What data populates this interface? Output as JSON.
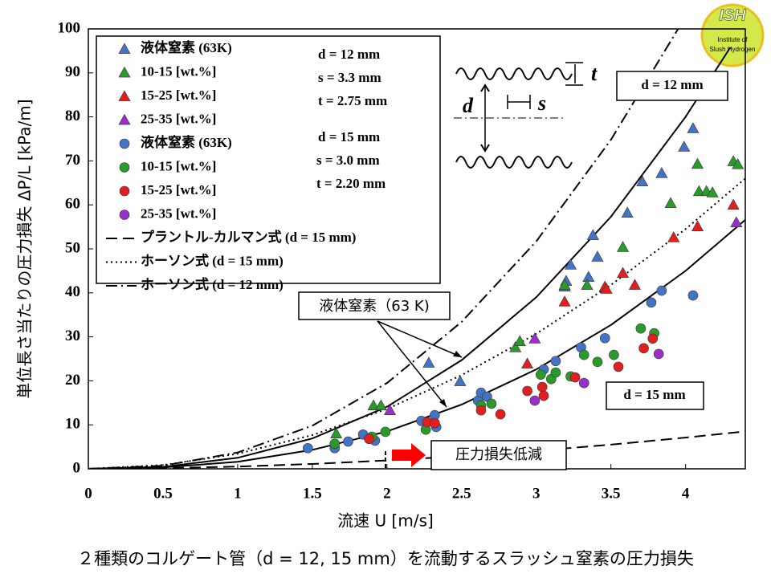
{
  "chart_data": {
    "type": "scatter",
    "title": "２種類のコルゲート管（d = 12, 15 mm）を流動するスラッシュ窒素の圧力損失",
    "x_label": "流速 U [m/s]",
    "y_label": "単位長さ当たりの圧力損失 ΔP/L [kPa/m]",
    "xlim": [
      0,
      4.4
    ],
    "ylim": [
      0,
      100
    ],
    "xticks": [
      0,
      0.5,
      1,
      1.5,
      2,
      2.5,
      3,
      3.5,
      4
    ],
    "yticks": [
      0,
      10,
      20,
      30,
      40,
      50,
      60,
      70,
      80,
      90,
      100
    ],
    "grid": false,
    "legend": "upper left",
    "series": [
      {
        "name": "液体窒素 (63K)",
        "color": "#4472c4",
        "marker": "triangle",
        "x": [
          2.28,
          2.49,
          3.19,
          3.23,
          3.2,
          3.35,
          3.38,
          3.41,
          3.61,
          3.71,
          3.84,
          3.99,
          4.05
        ],
        "values": [
          24.1,
          19.9,
          41.4,
          46.4,
          42.7,
          43.6,
          53.1,
          48.2,
          58.2,
          65.3,
          67.2,
          73.2,
          77.4
        ]
      },
      {
        "name": "10-15 [wt.%]",
        "color": "#2a9a2a",
        "marker": "triangle",
        "x": [
          1.66,
          1.91,
          1.96,
          2.86,
          2.89,
          3.19,
          3.34,
          3.58,
          3.9,
          4.08,
          4.09,
          4.14,
          4.18,
          4.32,
          4.35
        ],
        "values": [
          8.0,
          14.4,
          14.4,
          27.6,
          29.0,
          41.8,
          41.8,
          50.4,
          60.4,
          69.3,
          63.1,
          63.1,
          62.8,
          69.9,
          69.2
        ]
      },
      {
        "name": "15-25 [wt.%]",
        "color": "#e02020",
        "marker": "triangle",
        "x": [
          2.94,
          3.19,
          3.46,
          3.47,
          3.58,
          3.66,
          3.92,
          4.08,
          4.32
        ],
        "values": [
          23.9,
          38.0,
          41.4,
          40.9,
          44.5,
          41.8,
          52.6,
          55.1,
          60.0
        ]
      },
      {
        "name": "25-35 [wt.%]",
        "color": "#9b30c8",
        "marker": "triangle",
        "x": [
          2.02,
          2.99,
          4.34
        ],
        "values": [
          13.3,
          29.6,
          56.0
        ]
      },
      {
        "name": "液体窒素 (63K)",
        "color": "#4472c4",
        "marker": "circle",
        "x": [
          1.47,
          1.65,
          1.74,
          1.84,
          1.92,
          2.23,
          2.32,
          2.33,
          2.61,
          2.63,
          2.67,
          3.05,
          3.13,
          3.3,
          3.46,
          3.77,
          3.84,
          4.05
        ],
        "values": [
          4.7,
          4.7,
          6.2,
          7.8,
          6.4,
          10.9,
          12.2,
          9.5,
          15.5,
          17.3,
          16.4,
          22.6,
          24.5,
          27.6,
          29.7,
          37.8,
          40.5,
          39.4
        ]
      },
      {
        "name": "10-15 [wt.%]",
        "color": "#2a9a2a",
        "marker": "circle",
        "x": [
          1.65,
          1.9,
          1.99,
          2.26,
          2.63,
          2.7,
          3.03,
          3.1,
          3.13,
          3.23,
          3.32,
          3.41,
          3.52,
          3.7,
          3.79
        ],
        "values": [
          5.7,
          7.3,
          8.4,
          8.9,
          14.4,
          14.8,
          21.4,
          20.4,
          21.9,
          21.0,
          25.9,
          24.3,
          25.9,
          31.9,
          30.8
        ]
      },
      {
        "name": "15-25 [wt.%]",
        "color": "#e02020",
        "marker": "circle",
        "x": [
          1.88,
          2.27,
          2.32,
          2.63,
          2.76,
          2.94,
          3.04,
          3.05,
          3.26,
          3.55,
          3.72,
          3.78
        ],
        "values": [
          6.8,
          10.6,
          10.4,
          13.3,
          12.4,
          17.7,
          18.6,
          16.6,
          20.8,
          23.2,
          27.4,
          29.6
        ]
      },
      {
        "name": "25-35 [wt.%]",
        "color": "#9b30c8",
        "marker": "circle",
        "x": [
          2.99,
          3.32,
          3.82
        ],
        "values": [
          15.5,
          19.5,
          26.1
        ]
      },
      {
        "name": "プラントル-カルマン式  (d = 15 mm)",
        "color": "#000000",
        "marker": "line",
        "dash": "dashed",
        "x": [
          0,
          0.5,
          1,
          1.5,
          2,
          2.5,
          3,
          3.5,
          4,
          4.4
        ],
        "values": [
          0,
          0.14,
          0.51,
          1.1,
          1.9,
          2.9,
          4.1,
          5.5,
          7.1,
          8.5
        ]
      },
      {
        "name": "ホーソン式 (d = 15 mm)",
        "color": "#000000",
        "marker": "line",
        "dash": "dotted",
        "x": [
          0,
          0.5,
          1,
          1.5,
          2,
          2.5,
          3,
          3.5,
          4,
          4.4
        ],
        "values": [
          0,
          0.85,
          3.41,
          7.67,
          13.6,
          21.3,
          30.7,
          41.8,
          54.5,
          66
        ]
      },
      {
        "name": "ホーソン式 (d = 12 mm)",
        "color": "#000000",
        "marker": "line",
        "dash": "dashdot",
        "x": [
          0,
          0.5,
          1,
          1.5,
          2,
          2.5,
          3,
          3.5,
          3.95
        ],
        "values": [
          0,
          0.7,
          3.7,
          9.8,
          19.5,
          33.4,
          51.7,
          74.8,
          100
        ]
      },
      {
        "color": "#000000",
        "marker": "line",
        "dash": "solid",
        "x": [
          0,
          0.5,
          1,
          1.5,
          2,
          2.5,
          3,
          3.5,
          4,
          4.3
        ],
        "values": [
          0,
          0.44,
          2.5,
          6.9,
          14.1,
          24.7,
          39.0,
          57.3,
          80,
          95.8
        ]
      },
      {
        "color": "#000000",
        "marker": "line",
        "dash": "solid",
        "x": [
          0,
          0.5,
          1,
          1.5,
          2,
          2.5,
          3,
          3.5,
          4,
          4.4
        ],
        "values": [
          0,
          0.31,
          1.6,
          4.3,
          8.5,
          14.6,
          22.6,
          32.7,
          45,
          56.6
        ]
      }
    ],
    "annotations": [
      "d = 12 mm",
      "s = 3.3 mm",
      "t = 2.75 mm",
      "d = 15 mm",
      "s = 3.0 mm",
      "t = 2.20 mm",
      "d = 12 mm",
      "d = 15 mm",
      "液体窒素（63 K)",
      "圧力損失低減"
    ],
    "diagram_labels": [
      "t",
      "d",
      "s"
    ]
  },
  "logo": {
    "title": "ISH",
    "line1": "Institute of",
    "line2": "Slush Hydrogen"
  }
}
